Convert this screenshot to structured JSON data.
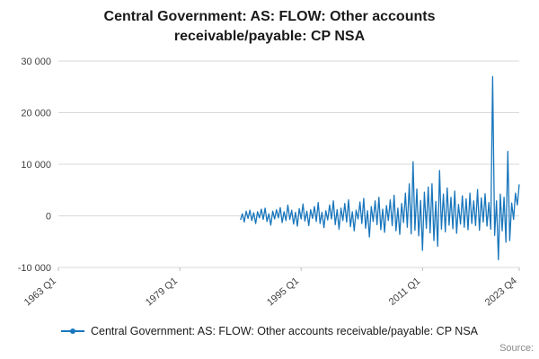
{
  "page": {
    "title": "Central Government: AS: FLOW: Other accounts receivable/payable: CP NSA",
    "source_label": "Source:"
  },
  "legend": {
    "label": "Central Government: AS: FLOW: Other accounts receivable/payable: CP NSA",
    "color": "#1976bc"
  },
  "chart_data": {
    "type": "line",
    "title": "Central Government: AS: FLOW: Other accounts receivable/payable: CP NSA",
    "xlabel": "",
    "ylabel": "",
    "grid": "horizontal",
    "legend_position": "bottom",
    "line_color": "#1976bc",
    "x_axis": {
      "start": "1963 Q1",
      "end": "2023 Q4",
      "frequency": "quarterly",
      "total_quarters": 244,
      "ticks": [
        {
          "label": "1963 Q1",
          "index": 0
        },
        {
          "label": "1979 Q1",
          "index": 64
        },
        {
          "label": "1995 Q1",
          "index": 128
        },
        {
          "label": "2011 Q1",
          "index": 192
        },
        {
          "label": "2023 Q4",
          "index": 243
        }
      ]
    },
    "y_axis": {
      "min": -10000,
      "max": 30000,
      "ticks": [
        {
          "value": 30000,
          "label": "30 000"
        },
        {
          "value": 20000,
          "label": "20 000"
        },
        {
          "value": 10000,
          "label": "10 000"
        },
        {
          "value": 0,
          "label": "0"
        },
        {
          "value": -10000,
          "label": "-10 000"
        }
      ]
    },
    "series": [
      {
        "name": "Central Government: AS: FLOW: Other accounts receivable/payable: CP NSA",
        "start": "1987 Q1",
        "start_offset_quarters": 96,
        "values": [
          -800,
          400,
          -1200,
          900,
          -500,
          1100,
          -900,
          600,
          -1500,
          800,
          -400,
          1300,
          -700,
          1500,
          -1100,
          400,
          -1800,
          900,
          -600,
          1200,
          -400,
          1600,
          -1300,
          800,
          -900,
          2100,
          -700,
          1100,
          -1600,
          700,
          -2000,
          1400,
          -600,
          2300,
          -1000,
          900,
          -1900,
          1200,
          -500,
          1800,
          -1100,
          2600,
          -1500,
          700,
          -2300,
          1000,
          -800,
          2100,
          -600,
          2900,
          -1700,
          1200,
          -2600,
          1500,
          -900,
          2400,
          -1200,
          3100,
          -2100,
          800,
          -2900,
          1100,
          -600,
          2700,
          -1500,
          3400,
          -2400,
          1000,
          -4100,
          1800,
          -1100,
          2900,
          -1700,
          3600,
          -2700,
          1300,
          -3200,
          2000,
          -900,
          3100,
          -1900,
          4000,
          -2900,
          1500,
          -3600,
          2400,
          -1300,
          4400,
          -2200,
          6200,
          -3500,
          10500,
          -2800,
          5200,
          -3900,
          3000,
          -6700,
          4600,
          -2400,
          5600,
          -3300,
          6200,
          -4800,
          2800,
          -5900,
          8800,
          -2600,
          4200,
          -3100,
          5400,
          -1800,
          3600,
          -2500,
          4800,
          -3400,
          2200,
          -1600,
          3900,
          -2200,
          3300,
          -2700,
          4400,
          -1500,
          2900,
          -1900,
          5100,
          -2800,
          3500,
          -1200,
          4300,
          -2000,
          2600,
          -2600,
          27000,
          -3800,
          2900,
          -8500,
          4200,
          -2900,
          3600,
          -5100,
          12500,
          -4800,
          2500,
          -700,
          4400,
          2100,
          6100
        ]
      }
    ]
  }
}
